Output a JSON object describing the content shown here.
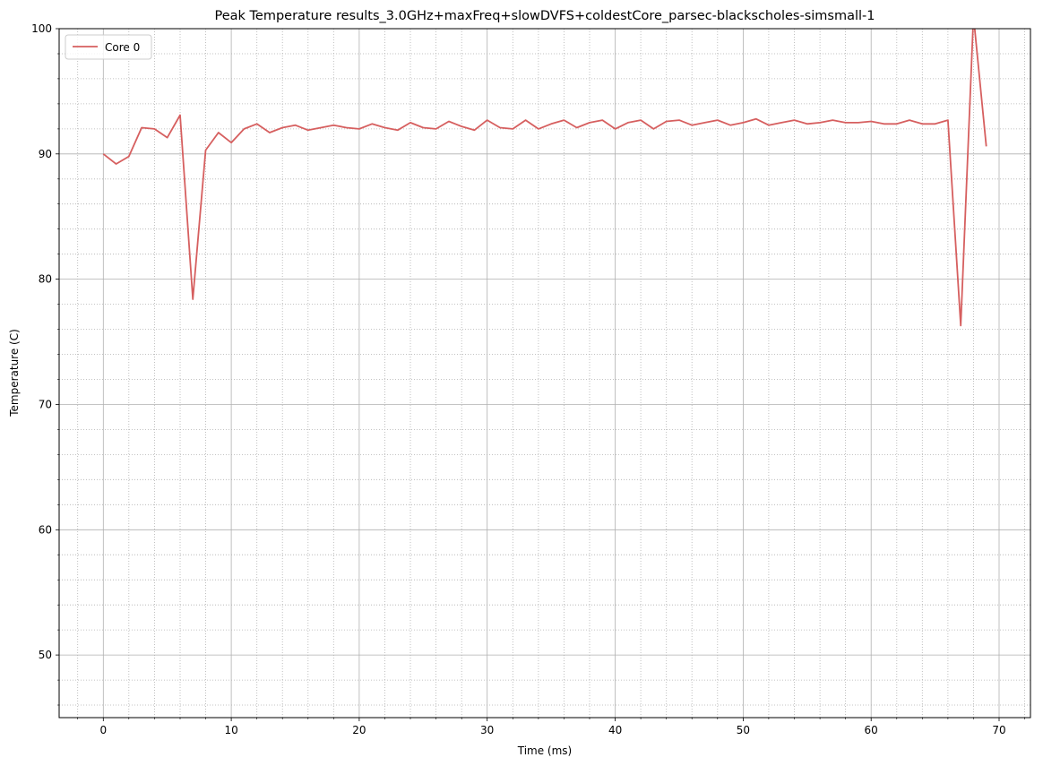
{
  "chart_data": {
    "type": "line",
    "title": "Peak Temperature results_3.0GHz+maxFreq+slowDVFS+coldestCore_parsec-blackscholes-simsmall-1",
    "xlabel": "Time (ms)",
    "ylabel": "Temperature (C)",
    "xlim": [
      -3.45,
      72.45
    ],
    "ylim": [
      45,
      100
    ],
    "xticks": [
      0,
      10,
      20,
      30,
      40,
      50,
      60,
      70
    ],
    "yticks": [
      50,
      60,
      70,
      80,
      90,
      100
    ],
    "x_minor_step": 2,
    "y_minor_step": 2,
    "grid": "major solid, minor dotted",
    "legend_position": "upper-left",
    "series": [
      {
        "name": "Core 0",
        "color": "#d65f5f",
        "x": [
          0,
          1,
          2,
          3,
          4,
          5,
          6,
          7,
          8,
          9,
          10,
          11,
          12,
          13,
          14,
          15,
          16,
          17,
          18,
          19,
          20,
          21,
          22,
          23,
          24,
          25,
          26,
          27,
          28,
          29,
          30,
          31,
          32,
          33,
          34,
          35,
          36,
          37,
          38,
          39,
          40,
          41,
          42,
          43,
          44,
          45,
          46,
          47,
          48,
          49,
          50,
          51,
          52,
          53,
          54,
          55,
          56,
          57,
          58,
          59,
          60,
          61,
          62,
          63,
          64,
          65,
          66,
          67,
          68,
          69
        ],
        "values": [
          90.0,
          89.2,
          89.8,
          92.1,
          92.0,
          91.3,
          93.1,
          78.4,
          90.3,
          91.7,
          90.9,
          92.0,
          92.4,
          91.7,
          92.1,
          92.3,
          91.9,
          92.1,
          92.3,
          92.1,
          92.0,
          92.4,
          92.1,
          91.9,
          92.5,
          92.1,
          92.0,
          92.6,
          92.2,
          91.9,
          92.7,
          92.1,
          92.0,
          92.7,
          92.0,
          92.4,
          92.7,
          92.1,
          92.5,
          92.7,
          92.0,
          92.5,
          92.7,
          92.0,
          92.6,
          92.7,
          92.3,
          92.5,
          92.7,
          92.3,
          92.5,
          92.8,
          92.3,
          92.5,
          92.7,
          92.4,
          92.5,
          92.7,
          92.5,
          92.5,
          92.6,
          92.4,
          92.4,
          92.7,
          92.4,
          92.4,
          92.7,
          76.3,
          101.0,
          90.6
        ]
      }
    ]
  }
}
